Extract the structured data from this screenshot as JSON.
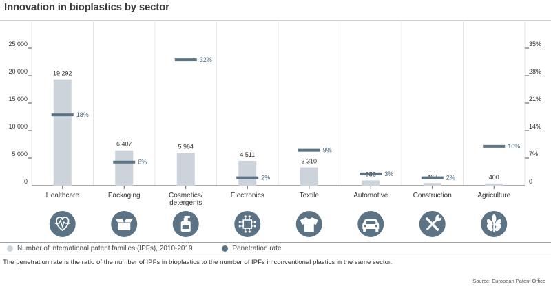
{
  "title": "Innovation in bioplastics by sector",
  "chart_data": {
    "type": "bar",
    "categories": [
      "Healthcare",
      "Packaging",
      "Cosmetics/ detergents",
      "Electronics",
      "Textile",
      "Automotive",
      "Construction",
      "Agriculture"
    ],
    "category_lines": [
      [
        "Healthcare"
      ],
      [
        "Packaging"
      ],
      [
        "Cosmetics/",
        "detergents"
      ],
      [
        "Electronics"
      ],
      [
        "Textile"
      ],
      [
        "Automotive"
      ],
      [
        "Construction"
      ],
      [
        "Agriculture"
      ]
    ],
    "series": [
      {
        "name": "Number of international patent families (IPFs), 2010-2019",
        "axis": "left",
        "values": [
          19292,
          6407,
          5964,
          4511,
          3310,
          953,
          467,
          400
        ],
        "labels": [
          "19 292",
          "6 407",
          "5 964",
          "4 511",
          "3 310",
          "953",
          "467",
          "400"
        ]
      },
      {
        "name": "Penetration rate",
        "axis": "right",
        "values": [
          18,
          6,
          32,
          2,
          9,
          3,
          2,
          10
        ],
        "labels": [
          "18%",
          "6%",
          "32%",
          "2%",
          "9%",
          "3%",
          "2%",
          "10%"
        ]
      }
    ],
    "left_axis": {
      "ticks": [
        0,
        5000,
        10000,
        15000,
        20000,
        25000
      ],
      "tick_labels": [
        "0",
        "5 000",
        "10 000",
        "15 000",
        "20 000",
        "25 000"
      ],
      "ylim": [
        0,
        30000
      ]
    },
    "right_axis": {
      "ticks": [
        0,
        7,
        14,
        21,
        28,
        35
      ],
      "tick_labels": [
        "0",
        "7%",
        "14%",
        "21%",
        "28%",
        "35%"
      ],
      "ylim": [
        0,
        42
      ]
    },
    "icons": [
      "heart-monitor-icon",
      "box-icon",
      "bottle-icon",
      "circuit-chip-icon",
      "tshirt-icon",
      "car-icon",
      "tools-icon",
      "tree-icon"
    ],
    "colors": {
      "bar": "#cdd3da",
      "marker": "#5b7384",
      "icon_bg": "#5b7384",
      "grid": "#e3e7ea",
      "axis": "#555555"
    }
  },
  "legend": {
    "ipf": "Number of international patent families (IPFs), 2010-2019",
    "rate": "Penetration rate"
  },
  "note": "The penetration rate is the ratio of the number of IPFs in bioplastics to the number of IPFs in conventional plastics in the same sector.",
  "source": "Source: European Patent Office"
}
